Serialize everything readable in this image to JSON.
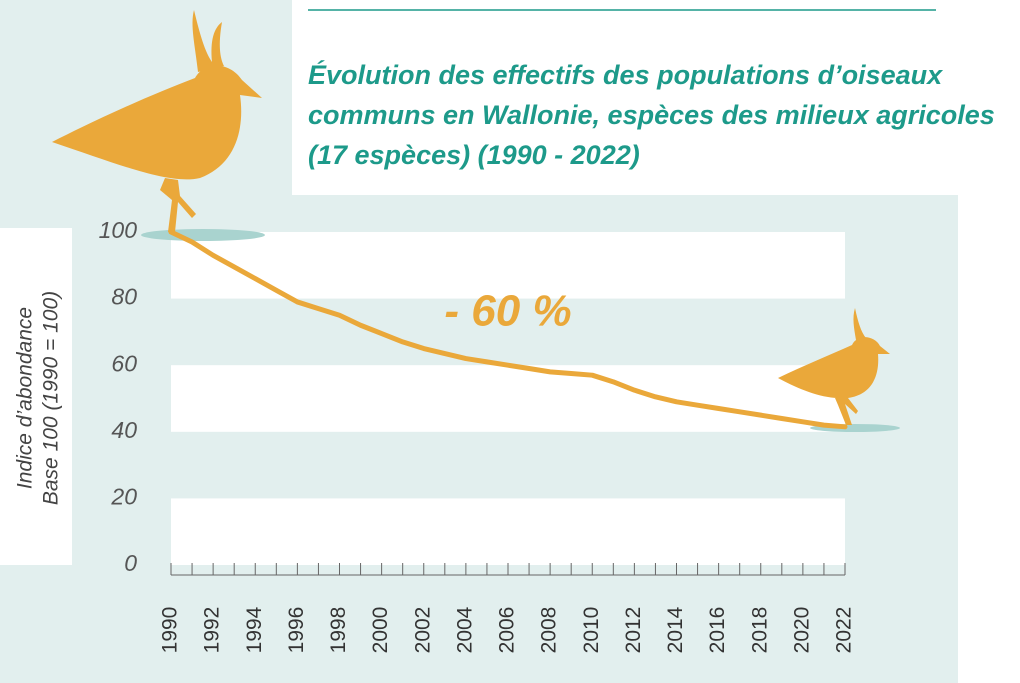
{
  "chart_data": {
    "type": "line",
    "title": [
      "Évolution des effectifs des populations d’oiseaux",
      "communs en Wallonie, espèces des milieux agricoles",
      "(17 espèces) (1990 - 2022)"
    ],
    "ylabel": [
      "Indice d’abondance",
      "Base 100 (1990 = 100)"
    ],
    "annotation": "- 60 %",
    "x": [
      1990,
      1991,
      1992,
      1993,
      1994,
      1995,
      1996,
      1997,
      1998,
      1999,
      2000,
      2001,
      2002,
      2003,
      2004,
      2005,
      2006,
      2007,
      2008,
      2009,
      2010,
      2011,
      2012,
      2013,
      2014,
      2015,
      2016,
      2017,
      2018,
      2019,
      2020,
      2021,
      2022
    ],
    "values": [
      100,
      97,
      93,
      89.5,
      86,
      82.5,
      79,
      77,
      75,
      72,
      69.5,
      67,
      65,
      63.5,
      62,
      61,
      60,
      59,
      58,
      57.5,
      57,
      55,
      52.5,
      50.5,
      49,
      48,
      47,
      46,
      45,
      44,
      43,
      42,
      41.5
    ],
    "color": "#eaa83a",
    "xlim": [
      1990,
      2022
    ],
    "xticks": [
      1990,
      1992,
      1994,
      1996,
      1998,
      2000,
      2002,
      2004,
      2006,
      2008,
      2010,
      2012,
      2014,
      2016,
      2018,
      2020,
      2022
    ],
    "ylim": [
      0,
      100
    ],
    "yticks": [
      0,
      20,
      40,
      60,
      80,
      100
    ],
    "grid": "bands"
  }
}
